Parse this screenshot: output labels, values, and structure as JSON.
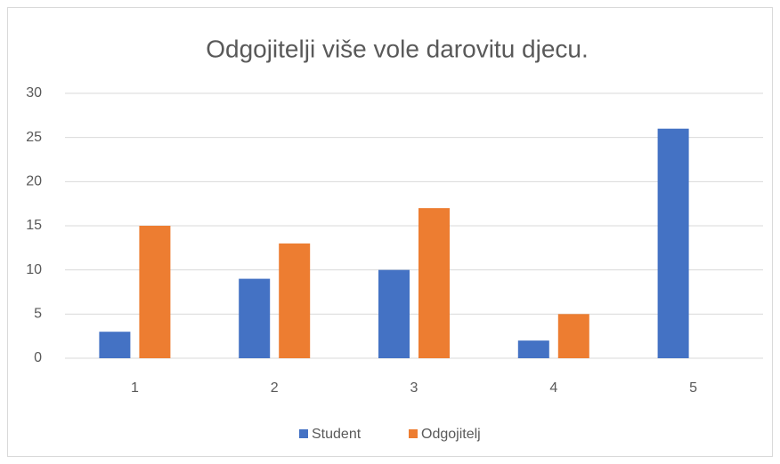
{
  "chart_data": {
    "type": "bar",
    "title": "Odgojitelji više vole darovitu djecu.",
    "categories": [
      "1",
      "2",
      "3",
      "4",
      "5"
    ],
    "series": [
      {
        "name": "Student",
        "color": "#4472c4",
        "values": [
          3,
          9,
          10,
          2,
          26
        ]
      },
      {
        "name": "Odgojitelj",
        "color": "#ed7d31",
        "values": [
          15,
          13,
          17,
          5,
          0
        ]
      }
    ],
    "ylim": [
      0,
      30
    ],
    "yticks": [
      0,
      5,
      10,
      15,
      20,
      25,
      30
    ],
    "grid": true,
    "legend": "bottom"
  }
}
